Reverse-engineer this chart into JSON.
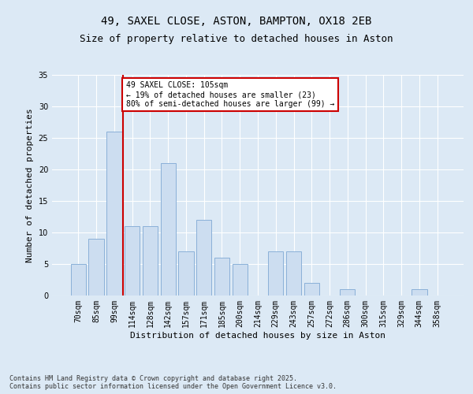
{
  "title_line1": "49, SAXEL CLOSE, ASTON, BAMPTON, OX18 2EB",
  "title_line2": "Size of property relative to detached houses in Aston",
  "xlabel": "Distribution of detached houses by size in Aston",
  "ylabel": "Number of detached properties",
  "categories": [
    "70sqm",
    "85sqm",
    "99sqm",
    "114sqm",
    "128sqm",
    "142sqm",
    "157sqm",
    "171sqm",
    "185sqm",
    "200sqm",
    "214sqm",
    "229sqm",
    "243sqm",
    "257sqm",
    "272sqm",
    "286sqm",
    "300sqm",
    "315sqm",
    "329sqm",
    "344sqm",
    "358sqm"
  ],
  "values": [
    5,
    9,
    26,
    11,
    11,
    21,
    7,
    12,
    6,
    5,
    0,
    7,
    7,
    2,
    0,
    1,
    0,
    0,
    0,
    1,
    0
  ],
  "bar_color": "#ccddf0",
  "bar_edge_color": "#8ab0d8",
  "background_color": "#dce9f5",
  "plot_bg_color": "#dce9f5",
  "red_line_x": 2.5,
  "red_line_color": "#cc0000",
  "annotation_text": "49 SAXEL CLOSE: 105sqm\n← 19% of detached houses are smaller (23)\n80% of semi-detached houses are larger (99) →",
  "annotation_box_color": "#ffffff",
  "annotation_box_edge": "#cc0000",
  "ylim": [
    0,
    35
  ],
  "yticks": [
    0,
    5,
    10,
    15,
    20,
    25,
    30,
    35
  ],
  "footnote": "Contains HM Land Registry data © Crown copyright and database right 2025.\nContains public sector information licensed under the Open Government Licence v3.0.",
  "title_fontsize": 10,
  "subtitle_fontsize": 9,
  "axis_label_fontsize": 8,
  "tick_fontsize": 7,
  "annotation_fontsize": 7,
  "footnote_fontsize": 6
}
